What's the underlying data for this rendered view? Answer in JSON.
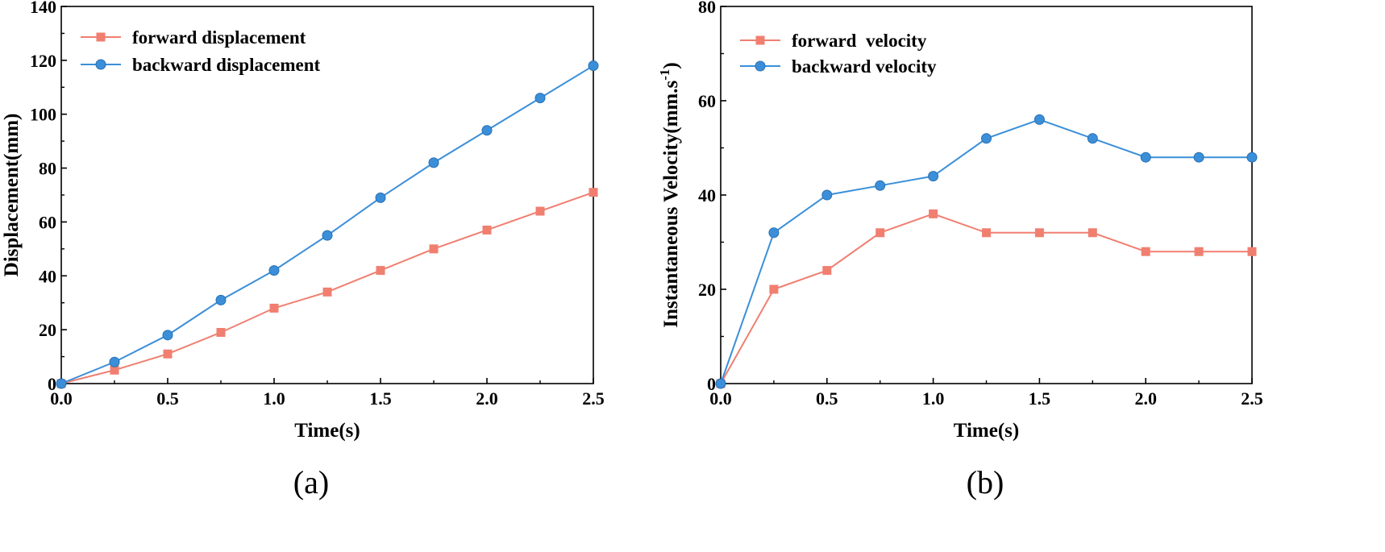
{
  "chart_data": [
    {
      "type": "line",
      "panel_label": "(a)",
      "title": "",
      "xlabel": "Time(s)",
      "ylabel": "Displacement(mm)",
      "xlim": [
        0,
        2.5
      ],
      "ylim": [
        0,
        140
      ],
      "x_ticks": [
        0,
        0.5,
        1,
        1.5,
        2,
        2.5
      ],
      "x_tick_labels": [
        "0.0",
        "0.5",
        "1.0",
        "1.5",
        "2.0",
        "2.5"
      ],
      "y_ticks": [
        0,
        20,
        40,
        60,
        80,
        100,
        120,
        140
      ],
      "y_tick_labels": [
        "0",
        "20",
        "40",
        "60",
        "80",
        "100",
        "120",
        "140"
      ],
      "legend_position": "top-left",
      "grid": false,
      "x": [
        0,
        0.25,
        0.5,
        0.75,
        1.0,
        1.25,
        1.5,
        1.75,
        2.0,
        2.25,
        2.5
      ],
      "series": [
        {
          "name": "forward displacement",
          "color": "#f07f70",
          "marker": "square",
          "values": [
            0,
            5,
            11,
            19,
            28,
            34,
            42,
            50,
            57,
            64,
            71
          ]
        },
        {
          "name": "backward displacement",
          "color": "#3b8fd9",
          "marker": "circle",
          "values": [
            0,
            8,
            18,
            31,
            42,
            55,
            69,
            82,
            94,
            106,
            118
          ]
        }
      ]
    },
    {
      "type": "line",
      "panel_label": "(b)",
      "title": "",
      "xlabel": "Time(s)",
      "ylabel": "Instantaneous Velocity(mm.s",
      "ylabel_superscript": "-1",
      "ylabel_suffix": ")",
      "xlim": [
        0,
        2.5
      ],
      "ylim": [
        0,
        80
      ],
      "x_ticks": [
        0,
        0.5,
        1,
        1.5,
        2,
        2.5
      ],
      "x_tick_labels": [
        "0.0",
        "0.5",
        "1.0",
        "1.5",
        "2.0",
        "2.5"
      ],
      "y_ticks": [
        0,
        20,
        40,
        60,
        80
      ],
      "y_tick_labels": [
        "0",
        "20",
        "40",
        "60",
        "80"
      ],
      "legend_position": "top-left",
      "grid": false,
      "x": [
        0,
        0.25,
        0.5,
        0.75,
        1.0,
        1.25,
        1.5,
        1.75,
        2.0,
        2.25,
        2.5
      ],
      "series": [
        {
          "name": "forward  velocity",
          "color": "#f07f70",
          "marker": "square",
          "values": [
            0,
            20,
            24,
            32,
            36,
            32,
            32,
            32,
            28,
            28,
            28
          ]
        },
        {
          "name": "backward velocity",
          "color": "#3b8fd9",
          "marker": "circle",
          "values": [
            0,
            32,
            40,
            42,
            44,
            52,
            56,
            52,
            48,
            48,
            48
          ]
        }
      ]
    }
  ]
}
